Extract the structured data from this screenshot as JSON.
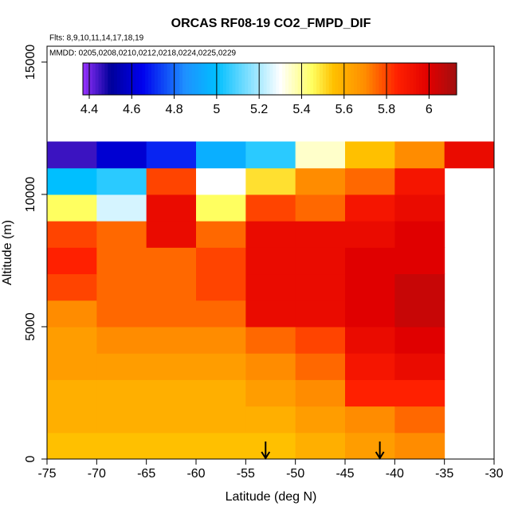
{
  "chart_data": {
    "type": "heatmap",
    "title": "ORCAS RF08-19 CO2_FMPD_DIF",
    "subtitle": "Flts: 8,9,10,11,14,17,18,19",
    "annotation": "MMDD: 0205,0208,0210,0212,0218,0224,0225,0229",
    "x_label": "Latitude (deg N)",
    "y_label": "Altitude (m)",
    "xlim": [
      -75,
      -30
    ],
    "xticks": [
      -75,
      -70,
      -65,
      -60,
      -55,
      -50,
      -45,
      -40,
      -35,
      -30
    ],
    "ylim": [
      0,
      15600
    ],
    "yticks": [
      0,
      5000,
      10000,
      15000
    ],
    "x_edges": [
      -75,
      -70,
      -65,
      -60,
      -55,
      -50,
      -45,
      -40,
      -35,
      -30
    ],
    "y_edges": [
      0,
      1000,
      2000,
      3000,
      4000,
      5000,
      6000,
      7000,
      8000,
      9000,
      10000,
      11000,
      12000
    ],
    "z": [
      [
        5.55,
        5.55,
        5.55,
        5.55,
        5.55,
        5.6,
        5.65,
        5.7,
        null
      ],
      [
        5.6,
        5.6,
        5.6,
        5.6,
        5.6,
        5.65,
        5.7,
        5.75,
        null
      ],
      [
        5.6,
        5.6,
        5.6,
        5.6,
        5.65,
        5.7,
        5.85,
        5.85,
        null
      ],
      [
        5.65,
        5.65,
        5.65,
        5.65,
        5.7,
        5.75,
        5.9,
        5.95,
        null
      ],
      [
        5.65,
        5.7,
        5.7,
        5.7,
        5.75,
        5.8,
        5.95,
        6.0,
        null
      ],
      [
        5.7,
        5.75,
        5.75,
        5.75,
        5.95,
        5.95,
        6.0,
        6.05,
        null
      ],
      [
        5.8,
        5.75,
        5.75,
        5.8,
        5.95,
        5.95,
        6.0,
        6.05,
        null
      ],
      [
        5.85,
        5.75,
        5.75,
        5.8,
        5.95,
        5.95,
        6.0,
        6.0,
        null
      ],
      [
        5.8,
        5.75,
        5.95,
        5.75,
        5.95,
        5.95,
        5.95,
        6.0,
        null
      ],
      [
        5.45,
        5.25,
        5.95,
        5.45,
        5.8,
        5.75,
        5.9,
        5.95,
        null
      ],
      [
        5.0,
        5.05,
        5.8,
        5.3,
        5.5,
        5.7,
        5.75,
        5.9,
        null
      ],
      [
        4.45,
        4.6,
        4.7,
        4.95,
        5.05,
        5.35,
        5.55,
        5.7,
        5.95
      ]
    ],
    "zlim": [
      4.37,
      6.13
    ],
    "zticks": [
      4.4,
      4.6,
      4.8,
      5.0,
      5.2,
      5.4,
      5.6,
      5.8,
      6.0
    ],
    "colorscale": [
      [
        4.37,
        "#9932ff"
      ],
      [
        4.5,
        "#00009a"
      ],
      [
        4.65,
        "#0000ee"
      ],
      [
        4.85,
        "#1e90ff"
      ],
      [
        5.0,
        "#00bfff"
      ],
      [
        5.3,
        "#ffffff"
      ],
      [
        5.45,
        "#ffff60"
      ],
      [
        5.55,
        "#ffc000"
      ],
      [
        5.7,
        "#ff8c00"
      ],
      [
        5.85,
        "#ff2000"
      ],
      [
        6.0,
        "#e00000"
      ],
      [
        6.13,
        "#a01010"
      ]
    ],
    "arrows_x": [
      -53,
      -41.5
    ]
  }
}
